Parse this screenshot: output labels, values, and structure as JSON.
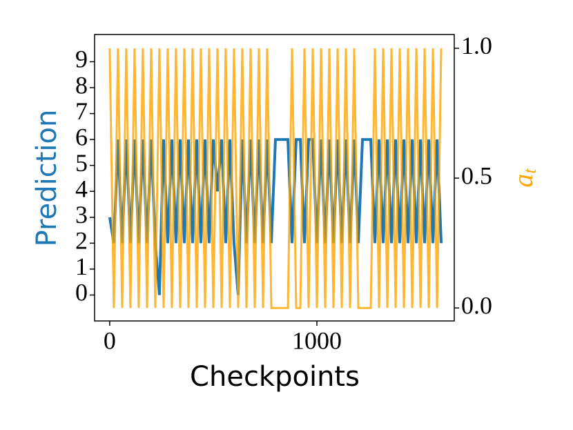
{
  "chart_data": {
    "type": "line",
    "xlabel": "Checkpoints",
    "ylabel": "Prediction",
    "y2label": [
      "a",
      "t"
    ],
    "x": [
      0,
      20,
      40,
      60,
      80,
      100,
      120,
      140,
      160,
      180,
      200,
      220,
      240,
      260,
      280,
      300,
      320,
      340,
      360,
      380,
      400,
      420,
      440,
      460,
      480,
      500,
      520,
      540,
      560,
      580,
      600,
      620,
      640,
      660,
      680,
      700,
      720,
      740,
      760,
      780,
      800,
      820,
      840,
      860,
      880,
      900,
      920,
      940,
      960,
      980,
      1000,
      1020,
      1040,
      1060,
      1080,
      1100,
      1120,
      1140,
      1160,
      1180,
      1200,
      1220,
      1240,
      1260,
      1280,
      1300,
      1320,
      1340,
      1360,
      1380,
      1400,
      1420,
      1440,
      1460,
      1480,
      1500,
      1520,
      1540,
      1560,
      1580,
      1600
    ],
    "series": [
      {
        "name": "Prediction",
        "color": "#1f77b4",
        "axis": "y",
        "values": [
          3,
          2,
          6,
          2,
          6,
          2,
          6,
          2,
          6,
          2,
          6,
          2,
          0,
          6,
          2,
          6,
          2,
          6,
          2,
          6,
          2,
          6,
          2,
          6,
          2,
          6,
          4,
          6,
          2,
          6,
          2,
          0,
          6,
          2,
          6,
          2,
          6,
          2,
          6,
          2,
          6,
          6,
          6,
          6,
          2,
          6,
          6,
          2,
          6,
          6,
          2,
          6,
          2,
          6,
          2,
          6,
          2,
          6,
          2,
          6,
          2,
          6,
          6,
          6,
          2,
          6,
          2,
          6,
          2,
          6,
          2,
          6,
          2,
          6,
          2,
          6,
          2,
          6,
          2,
          6,
          2
        ]
      },
      {
        "name": "a_t",
        "color": "#ffa500",
        "axis": "y2",
        "values": [
          1,
          0,
          1,
          0,
          1,
          0,
          1,
          0,
          1,
          0,
          1,
          0,
          1,
          0,
          1,
          0,
          1,
          0,
          1,
          0,
          1,
          0,
          1,
          0,
          1,
          0,
          1,
          0,
          1,
          0,
          1,
          0,
          1,
          0,
          1,
          0,
          1,
          0,
          1,
          0,
          0,
          0,
          0,
          0,
          1,
          0,
          0,
          1,
          0,
          1,
          0,
          1,
          0,
          1,
          0,
          1,
          0,
          1,
          0,
          1,
          0,
          0,
          0,
          0,
          1,
          0,
          1,
          0,
          1,
          0,
          1,
          0,
          1,
          0,
          1,
          0,
          1,
          0,
          1,
          0,
          1
        ]
      }
    ],
    "xlim": [
      -73,
      1663
    ],
    "xticks": [
      0,
      1000
    ],
    "ylim": [
      -1.0,
      10.05
    ],
    "yticks": [
      0,
      1,
      2,
      3,
      4,
      5,
      6,
      7,
      8,
      9
    ],
    "y2lim": [
      -0.05,
      1.053
    ],
    "y2ticks": [
      {
        "value": 0,
        "label": "0.0"
      },
      {
        "value": 0.5,
        "label": "0.5"
      },
      {
        "value": 1,
        "label": "1.0"
      }
    ]
  }
}
